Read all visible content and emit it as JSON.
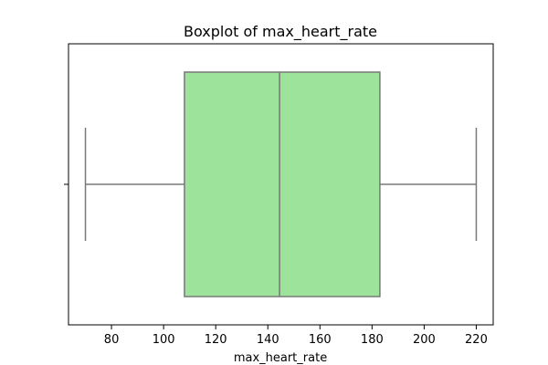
{
  "chart_data": {
    "type": "boxplot",
    "title": "Boxplot of max_heart_rate",
    "xlabel": "max_heart_rate",
    "ylabel": "",
    "orientation": "horizontal",
    "xlim": [
      63.5,
      226.5
    ],
    "xticks": [
      80,
      100,
      120,
      140,
      160,
      180,
      200,
      220
    ],
    "grid": false,
    "legend": "none",
    "box": {
      "whisker_low": 70,
      "q1": 108,
      "median": 144.5,
      "q3": 183,
      "whisker_high": 220
    },
    "colors": {
      "box_fill": "#9de39b",
      "line": "#787878"
    }
  }
}
